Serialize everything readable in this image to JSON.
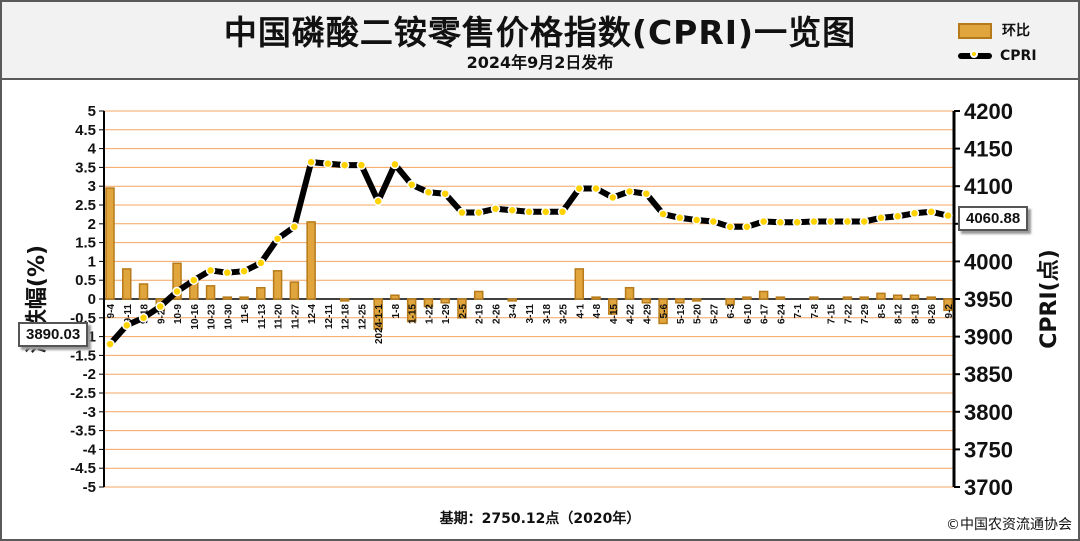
{
  "header": {
    "title": "中国磷酸二铵零售价格指数(CPRI)一览图",
    "subtitle": "2024年9月2日发布"
  },
  "legend": {
    "bar_label": "环比",
    "line_label": "CPRI"
  },
  "footer": {
    "base_text": "基期：2750.12点（2020年）",
    "copyright": "©中国农资流通协会"
  },
  "callouts": {
    "start_value": "3890.03",
    "end_value": "4060.88"
  },
  "colors": {
    "bar_fill": "#e0a53c",
    "bar_stroke": "#b77a1a",
    "grid": "#f4a460",
    "line": "#000000",
    "marker": "#ffd200"
  },
  "chart_data": {
    "type": "bar",
    "categories": [
      "9-4",
      "9-11",
      "9-18",
      "9-25",
      "10-9",
      "10-16",
      "10-23",
      "10-30",
      "11-6",
      "11-13",
      "11-20",
      "11-27",
      "12-4",
      "12-11",
      "12-18",
      "12-25",
      "2024-1-1",
      "1-8",
      "1-15",
      "1-22",
      "1-29",
      "2-5",
      "2-19",
      "2-26",
      "3-4",
      "3-11",
      "3-18",
      "3-25",
      "4-1",
      "4-8",
      "4-15",
      "4-22",
      "4-29",
      "5-6",
      "5-13",
      "5-20",
      "5-27",
      "6-3",
      "6-10",
      "6-17",
      "6-24",
      "7-1",
      "7-8",
      "7-15",
      "7-22",
      "7-29",
      "8-5",
      "8-12",
      "8-19",
      "8-26",
      "9-2"
    ],
    "series": [
      {
        "name": "环比",
        "type": "bar",
        "axis": "left",
        "values": [
          2.95,
          0.8,
          0.4,
          -0.3,
          0.95,
          0.45,
          0.35,
          0.05,
          0.05,
          0.3,
          0.75,
          0.45,
          2.05,
          0.0,
          -0.05,
          0.0,
          -0.8,
          0.1,
          -0.6,
          -0.2,
          -0.1,
          -0.5,
          0.2,
          0.0,
          -0.05,
          0.0,
          0.0,
          0.0,
          0.8,
          0.05,
          -0.4,
          0.3,
          -0.1,
          -0.65,
          -0.1,
          -0.05,
          0.0,
          -0.15,
          0.05,
          0.2,
          0.05,
          0.0,
          0.05,
          0.0,
          0.05,
          0.05,
          0.15,
          0.1,
          0.1,
          0.05,
          -0.3
        ]
      },
      {
        "name": "CPRI",
        "type": "line",
        "axis": "right",
        "values": [
          3890.03,
          3915,
          3925,
          3940,
          3960,
          3975,
          3988,
          3985,
          3987,
          3998,
          4030,
          4046,
          4132,
          4130,
          4128,
          4128,
          4080,
          4129,
          4102,
          4092,
          4090,
          4065,
          4065,
          4070,
          4068,
          4066,
          4066,
          4066,
          4097,
          4097,
          4085,
          4093,
          4090,
          4063,
          4058,
          4055,
          4053,
          4046,
          4046,
          4053,
          4052,
          4052,
          4053,
          4053,
          4053,
          4053,
          4058,
          4060,
          4064,
          4066,
          4060.88
        ]
      }
    ],
    "y_left": {
      "label": "涨跌幅(%)",
      "min": -5,
      "max": 5,
      "step": 0.5
    },
    "y_right": {
      "label": "CPRI(点)",
      "min": 3700,
      "max": 4200,
      "step": 50
    },
    "legend_position": "top-right",
    "grid": true
  }
}
